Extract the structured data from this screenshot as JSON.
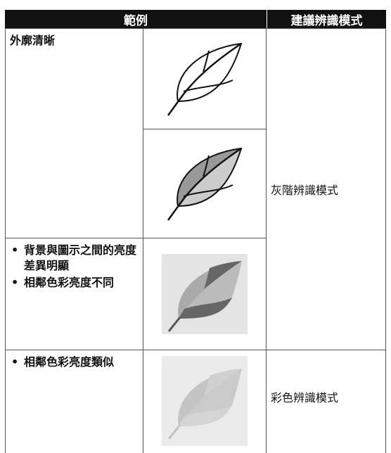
{
  "header": {
    "columns": [
      "範例",
      "建議辨識模式"
    ]
  },
  "rows": [
    {
      "description": [
        "外廓清晰"
      ]
    },
    {
      "description": [
        "背景與圖示之間的亮度差異明顯",
        "相鄰色彩亮度不同"
      ]
    },
    {
      "description": [
        "相鄰色彩亮度類似"
      ]
    }
  ],
  "modes": [
    "灰階辨識模式",
    "彩色辨識模式"
  ]
}
